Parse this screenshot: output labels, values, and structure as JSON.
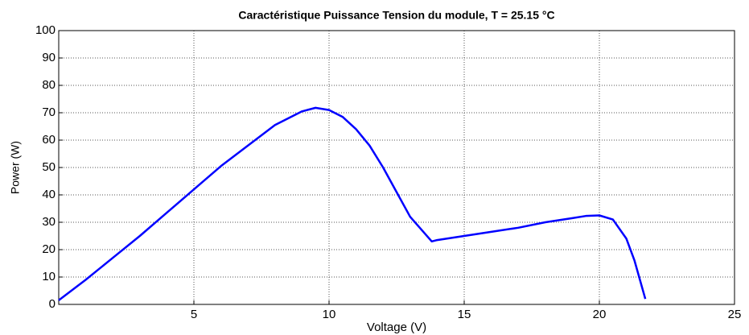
{
  "chart_data": {
    "type": "line",
    "title": "Caractéristique Puissance Tension du module, T = 25.15 °C",
    "x_label": "Voltage (V)",
    "y_label": "Power (W)",
    "x": [
      0,
      1,
      2,
      3,
      4,
      5,
      6,
      7,
      8,
      9,
      9.5,
      10,
      10.5,
      11,
      11.5,
      12,
      12.5,
      13,
      13.8,
      14,
      15,
      16,
      17,
      18,
      19,
      19.5,
      20,
      20.5,
      21,
      21.3,
      21.5,
      21.7
    ],
    "series": [
      {
        "name": "Power",
        "color": "#0000ff",
        "values": [
          1.5,
          9,
          17,
          25,
          33.5,
          42,
          50.5,
          58,
          65.5,
          70.5,
          71.8,
          71,
          68.5,
          64,
          58,
          50,
          41,
          32,
          23,
          23.5,
          25,
          26.5,
          28,
          30,
          31.5,
          32.3,
          32.5,
          31,
          24,
          16,
          9,
          2
        ]
      }
    ],
    "xlim": [
      0,
      25
    ],
    "xticks": [
      5,
      10,
      15,
      20,
      25
    ],
    "ylim": [
      0,
      100
    ],
    "yticks": [
      0,
      10,
      20,
      30,
      40,
      50,
      60,
      70,
      80,
      90,
      100
    ],
    "grid": true
  }
}
